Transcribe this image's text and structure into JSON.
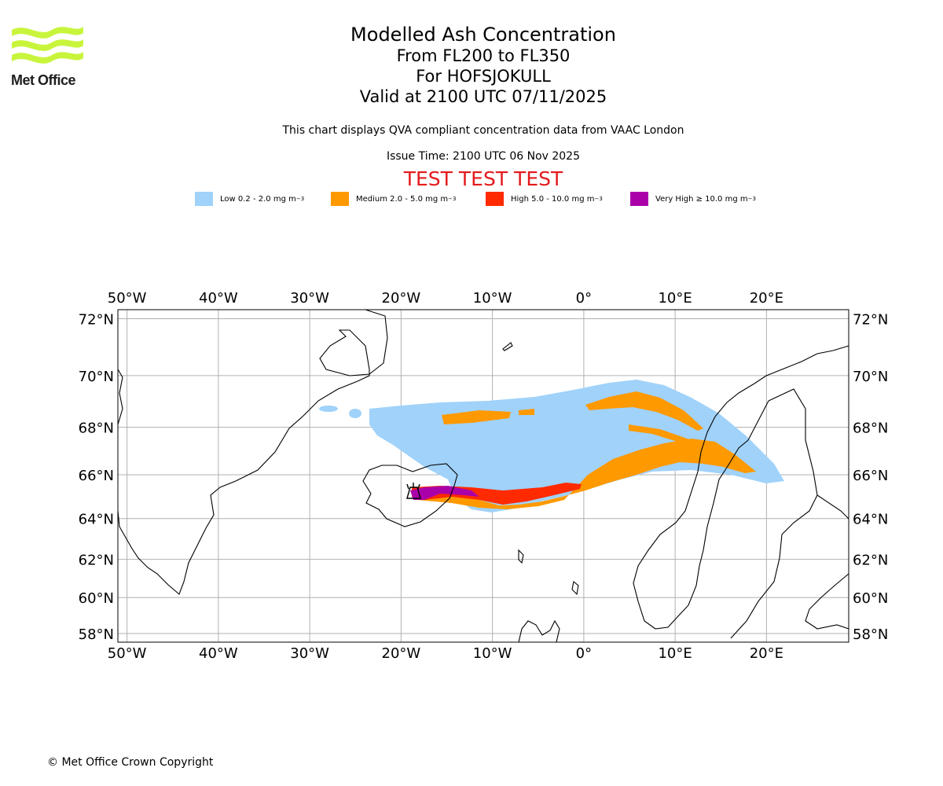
{
  "logo": {
    "text": "Met Office",
    "color": "#c8f53c"
  },
  "title": {
    "line1": "Modelled Ash Concentration",
    "line2": "From FL200 to FL350",
    "line3": "For HOFSJOKULL",
    "line4": "Valid at 2100 UTC 07/11/2025"
  },
  "subtitle": "This chart displays QVA compliant concentration data from VAAC London",
  "issue_time": "Issue Time: 2100 UTC 06 Nov 2025",
  "test_banner": "TEST TEST TEST",
  "legend": [
    {
      "label": "Low 0.2 - 2.0 mg m",
      "color": "#a0d2fa"
    },
    {
      "label": "Medium 2.0 - 5.0 mg m",
      "color": "#ff9900"
    },
    {
      "label": "High 5.0 - 10.0 mg m",
      "color": "#ff2a00"
    },
    {
      "label": "Very High  ≥  10.0 mg m",
      "color": "#aa00aa"
    }
  ],
  "legend_unit_exp": "−3",
  "axes": {
    "lon_labels": [
      "50°W",
      "40°W",
      "30°W",
      "20°W",
      "10°W",
      "0°",
      "10°E",
      "20°E"
    ],
    "lon_values": [
      -50,
      -40,
      -30,
      -20,
      -10,
      0,
      10,
      20
    ],
    "lat_labels": [
      "72°N",
      "70°N",
      "68°N",
      "66°N",
      "64°N",
      "62°N",
      "60°N",
      "58°N"
    ],
    "lat_values": [
      72,
      70,
      68,
      66,
      64,
      62,
      60,
      58
    ],
    "lon_range": [
      -51,
      29
    ],
    "lat_range": [
      57.5,
      72.3
    ]
  },
  "volcano": {
    "name": "HOFSJOKULL"
  },
  "copyright": "© Met Office Crown Copyright"
}
